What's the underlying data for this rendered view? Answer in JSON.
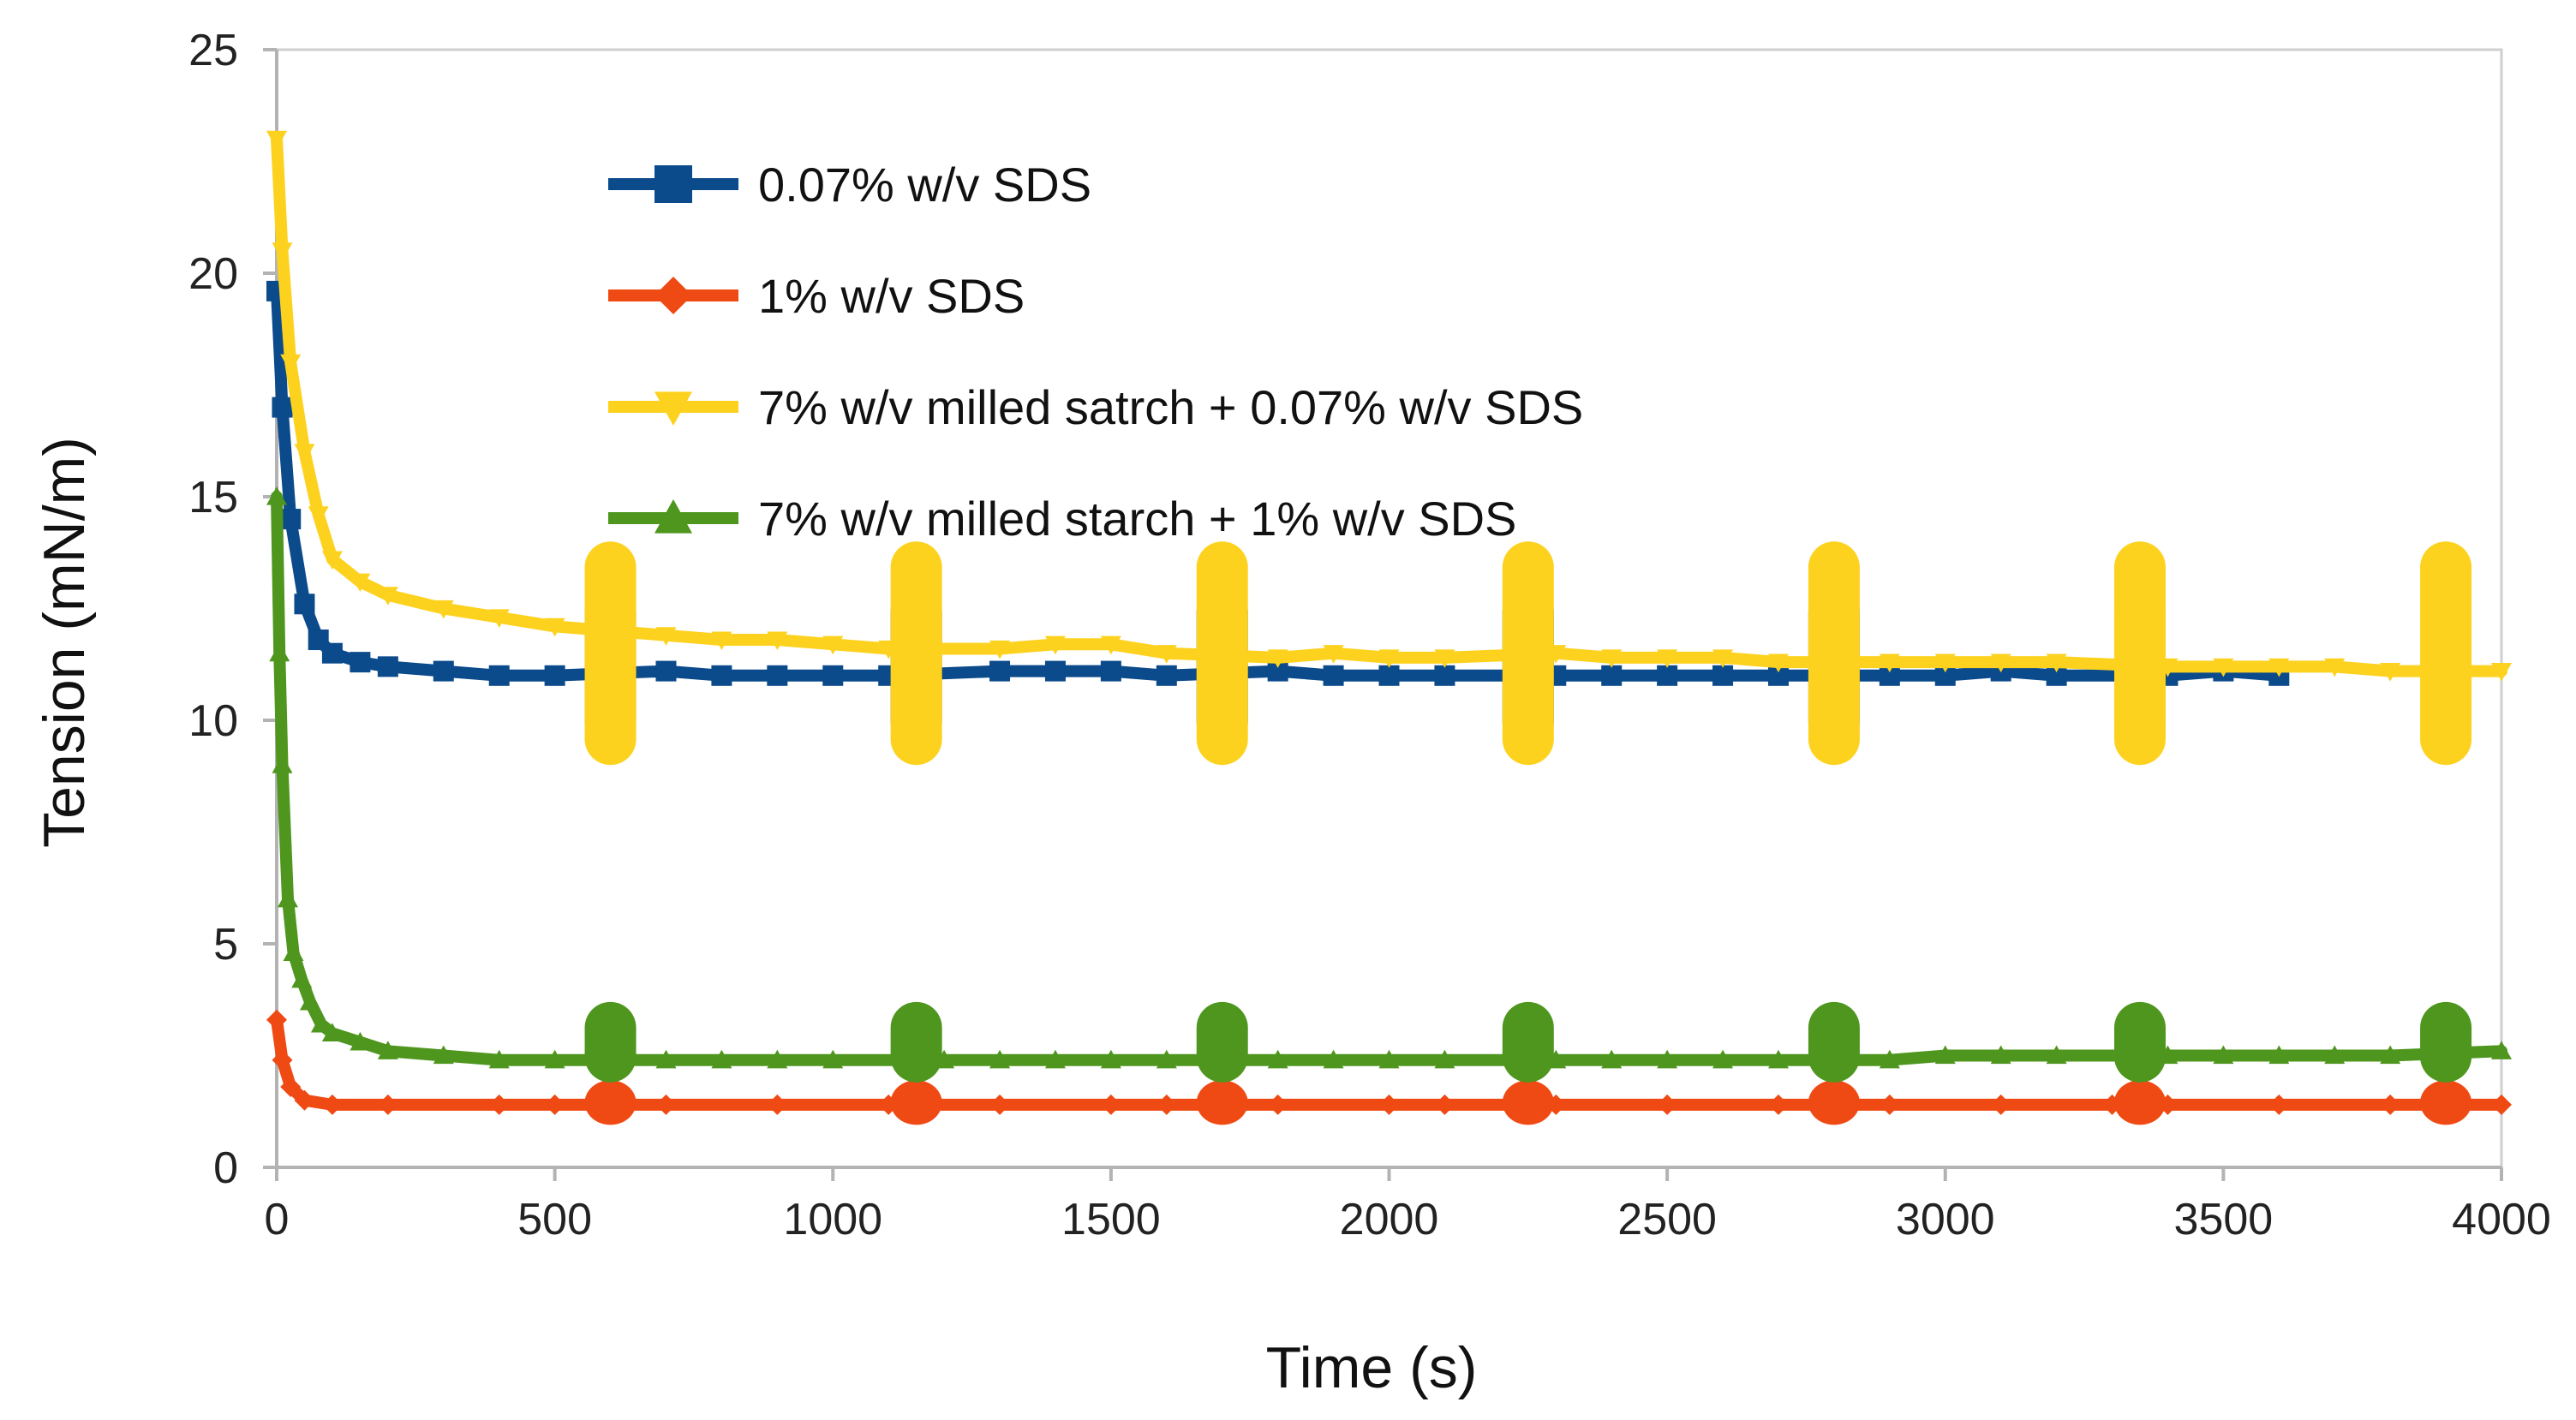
{
  "chart_data": {
    "type": "line",
    "title": "",
    "xlabel": "Time (s)",
    "ylabel": "Tension (mN/m)",
    "xlim": [
      0,
      4000
    ],
    "ylim": [
      0,
      25
    ],
    "x_ticks": [
      0,
      500,
      1000,
      1500,
      2000,
      2500,
      3000,
      3500,
      4000
    ],
    "y_ticks": [
      0,
      5,
      10,
      15,
      20,
      25
    ],
    "x_tick_labels": [
      "0",
      "500",
      "1000",
      "1500",
      "2000",
      "2500",
      "3000",
      "3500",
      "4000"
    ],
    "y_tick_labels": [
      "0",
      "5",
      "10",
      "15",
      "20",
      "25"
    ],
    "grid": false,
    "legend_position": "top-center",
    "oscillation_times": [
      600,
      1150,
      1700,
      2250,
      2800,
      3350,
      3900
    ],
    "series": [
      {
        "name": "0.07% w/v SDS",
        "color": "#0b4a8b",
        "marker": "square",
        "x": [
          0,
          10,
          25,
          50,
          75,
          100,
          150,
          200,
          300,
          400,
          500,
          700,
          800,
          900,
          1000,
          1100,
          1300,
          1400,
          1500,
          1600,
          1800,
          1900,
          2000,
          2100,
          2300,
          2400,
          2500,
          2600,
          2700,
          2900,
          3000,
          3100,
          3200,
          3400,
          3500,
          3600
        ],
        "y": [
          19.6,
          17.0,
          14.5,
          12.6,
          11.8,
          11.5,
          11.3,
          11.2,
          11.1,
          11.0,
          11.0,
          11.1,
          11.0,
          11.0,
          11.0,
          11.0,
          11.1,
          11.1,
          11.1,
          11.0,
          11.1,
          11.0,
          11.0,
          11.0,
          11.0,
          11.0,
          11.0,
          11.0,
          11.0,
          11.0,
          11.0,
          11.1,
          11.0,
          11.0,
          11.1,
          11.0
        ],
        "oscillation": {
          "times": [
            600,
            1150,
            1700,
            2250,
            2800,
            3350
          ],
          "low": 9.4,
          "high": 13.0
        }
      },
      {
        "name": "1% w/v SDS",
        "color": "#f04a14",
        "marker": "diamond",
        "x": [
          0,
          10,
          25,
          50,
          100,
          200,
          400,
          500,
          700,
          900,
          1100,
          1300,
          1500,
          1600,
          1800,
          2000,
          2100,
          2300,
          2500,
          2700,
          2900,
          3100,
          3300,
          3400,
          3600,
          3800,
          4000
        ],
        "y": [
          3.3,
          2.4,
          1.8,
          1.5,
          1.4,
          1.4,
          1.4,
          1.4,
          1.4,
          1.4,
          1.4,
          1.4,
          1.4,
          1.4,
          1.4,
          1.4,
          1.4,
          1.4,
          1.4,
          1.4,
          1.4,
          1.4,
          1.4,
          1.4,
          1.4,
          1.4,
          1.4
        ],
        "oscillation": {
          "times": [
            600,
            1150,
            1700,
            2250,
            2800,
            3350,
            3900
          ],
          "low": 0.95,
          "high": 1.95
        }
      },
      {
        "name": "7% w/v milled satrch + 0.07% w/v SDS",
        "color": "#fdd21f",
        "marker": "triangle-down",
        "x": [
          0,
          10,
          25,
          50,
          75,
          100,
          150,
          200,
          300,
          400,
          500,
          700,
          800,
          900,
          1000,
          1100,
          1300,
          1400,
          1500,
          1600,
          1800,
          1900,
          2000,
          2100,
          2300,
          2400,
          2500,
          2600,
          2700,
          2900,
          3000,
          3100,
          3200,
          3400,
          3500,
          3600,
          3700,
          3800,
          4000
        ],
        "y": [
          23.0,
          20.5,
          18.0,
          16.0,
          14.6,
          13.6,
          13.1,
          12.8,
          12.5,
          12.3,
          12.1,
          11.9,
          11.8,
          11.8,
          11.7,
          11.6,
          11.6,
          11.7,
          11.7,
          11.5,
          11.4,
          11.5,
          11.4,
          11.4,
          11.5,
          11.4,
          11.4,
          11.4,
          11.3,
          11.3,
          11.3,
          11.3,
          11.3,
          11.2,
          11.2,
          11.2,
          11.2,
          11.1,
          11.1
        ],
        "oscillation": {
          "times": [
            600,
            1150,
            1700,
            2250,
            2800,
            3350,
            3900
          ],
          "low": 9.0,
          "high": 14.0
        }
      },
      {
        "name": "7% w/v milled starch + 1% w/v SDS",
        "color": "#4e961e",
        "marker": "triangle-up",
        "x": [
          0,
          5,
          10,
          20,
          30,
          45,
          60,
          80,
          100,
          150,
          200,
          300,
          400,
          500,
          700,
          800,
          900,
          1000,
          1200,
          1300,
          1400,
          1500,
          1600,
          1800,
          1900,
          2000,
          2100,
          2300,
          2400,
          2500,
          2600,
          2700,
          2900,
          3000,
          3100,
          3200,
          3400,
          3500,
          3600,
          3700,
          3800,
          4000
        ],
        "y": [
          15.0,
          11.5,
          9.0,
          6.0,
          4.8,
          4.2,
          3.7,
          3.2,
          3.0,
          2.8,
          2.6,
          2.5,
          2.4,
          2.4,
          2.4,
          2.4,
          2.4,
          2.4,
          2.4,
          2.4,
          2.4,
          2.4,
          2.4,
          2.4,
          2.4,
          2.4,
          2.4,
          2.4,
          2.4,
          2.4,
          2.4,
          2.4,
          2.4,
          2.5,
          2.5,
          2.5,
          2.5,
          2.5,
          2.5,
          2.5,
          2.5,
          2.6
        ],
        "oscillation": {
          "times": [
            600,
            1150,
            1700,
            2250,
            2800,
            3350,
            3900
          ],
          "low": 1.9,
          "high": 3.7
        }
      }
    ]
  }
}
